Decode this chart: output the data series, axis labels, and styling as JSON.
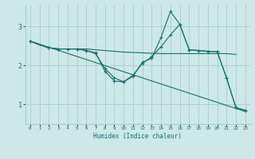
{
  "xlabel": "Humidex (Indice chaleur)",
  "xlim": [
    -0.5,
    23.5
  ],
  "ylim": [
    0.5,
    3.55
  ],
  "yticks": [
    1,
    2,
    3
  ],
  "xticks": [
    0,
    1,
    2,
    3,
    4,
    5,
    6,
    7,
    8,
    9,
    10,
    11,
    12,
    13,
    14,
    15,
    16,
    17,
    18,
    19,
    20,
    21,
    22,
    23
  ],
  "bg_color": "#cce8e8",
  "grid_color": "#aacccc",
  "line_color": "#1a6e6a",
  "lines": [
    {
      "x": [
        0,
        1,
        2,
        3,
        4,
        5,
        6,
        7,
        8,
        9,
        10,
        11,
        12,
        13,
        14,
        15,
        16,
        17,
        18,
        19,
        20,
        21,
        22
      ],
      "y": [
        2.62,
        2.52,
        2.45,
        2.42,
        2.42,
        2.42,
        2.42,
        2.4,
        2.38,
        2.36,
        2.34,
        2.33,
        2.32,
        2.31,
        2.3,
        2.3,
        2.3,
        2.3,
        2.3,
        2.3,
        2.3,
        2.3,
        2.28
      ],
      "marker": false
    },
    {
      "x": [
        0,
        23
      ],
      "y": [
        2.62,
        0.82
      ],
      "marker": false
    },
    {
      "x": [
        0,
        2,
        3,
        4,
        5,
        6,
        7,
        8,
        9,
        10,
        11,
        12,
        13,
        14,
        15,
        16,
        17,
        18,
        19,
        20,
        21,
        22,
        23
      ],
      "y": [
        2.62,
        2.45,
        2.42,
        2.42,
        2.42,
        2.38,
        2.32,
        1.85,
        1.6,
        1.58,
        1.72,
        2.08,
        2.18,
        2.72,
        3.38,
        3.05,
        2.4,
        2.38,
        2.36,
        2.35,
        1.68,
        0.92,
        0.85
      ],
      "marker": true
    },
    {
      "x": [
        0,
        2,
        3,
        5,
        6,
        7,
        8,
        9,
        10,
        11,
        12,
        13,
        14,
        15,
        16,
        17,
        18,
        19,
        20,
        21,
        22,
        23
      ],
      "y": [
        2.62,
        2.45,
        2.42,
        2.42,
        2.38,
        2.3,
        1.92,
        1.68,
        1.58,
        1.75,
        2.05,
        2.22,
        2.48,
        2.78,
        3.05,
        2.4,
        2.38,
        2.36,
        2.35,
        1.68,
        0.92,
        0.85
      ],
      "marker": true
    }
  ]
}
